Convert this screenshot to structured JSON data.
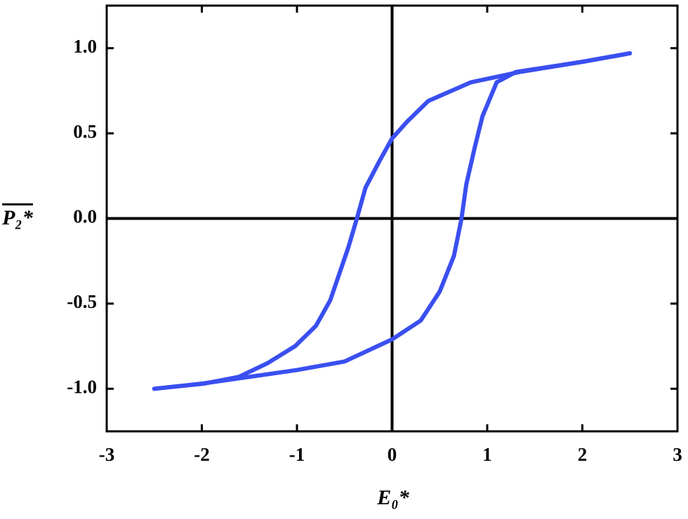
{
  "chart_data": {
    "type": "line",
    "x_label": "E₀*",
    "y_label": "P₂*",
    "xlim": [
      -3,
      3
    ],
    "ylim": [
      -1.25,
      1.25
    ],
    "xticks": [
      -3,
      -2,
      -1,
      0,
      1,
      2,
      3
    ],
    "yticks": [
      {
        "value": -1,
        "label": "-1.0"
      },
      {
        "value": -0.5,
        "label": "-0.5"
      },
      {
        "value": 0,
        "label": "0.0"
      },
      {
        "value": 0.5,
        "label": "0.5"
      },
      {
        "value": 1,
        "label": "1.0"
      }
    ],
    "series": [
      {
        "color": "#3a4ff0",
        "x": [
          2.5,
          2.0,
          1.34,
          0.83,
          0.38,
          0.16,
          0,
          -0.13,
          -0.28,
          -0.37,
          -0.46,
          -0.65,
          -0.8,
          -1.02,
          -1.31,
          -1.61,
          -1.98,
          -2.5
        ],
        "values": [
          0.97,
          0.92,
          0.86,
          0.8,
          0.69,
          0.57,
          0.47,
          0.34,
          0.18,
          0,
          -0.17,
          -0.48,
          -0.63,
          -0.75,
          -0.85,
          -0.93,
          -0.97,
          -1.0
        ]
      },
      {
        "color": "#3a4ff0",
        "x": [
          -2.5,
          -2.0,
          -1.5,
          -1.0,
          -0.5,
          0,
          0.3,
          0.5,
          0.65,
          0.73,
          0.78,
          0.87,
          0.95,
          1.1,
          1.3,
          2.0,
          2.5
        ],
        "values": [
          -1.0,
          -0.97,
          -0.93,
          -0.89,
          -0.84,
          -0.71,
          -0.6,
          -0.43,
          -0.22,
          0,
          0.2,
          0.42,
          0.6,
          0.8,
          0.86,
          0.92,
          0.97
        ]
      }
    ]
  }
}
